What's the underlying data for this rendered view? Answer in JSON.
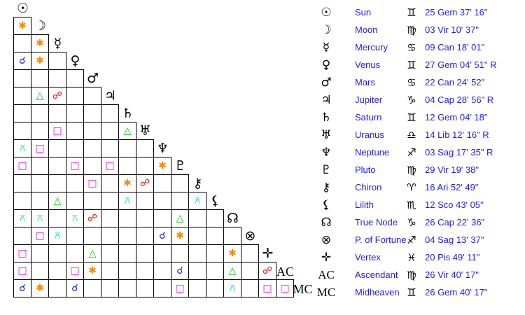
{
  "aspect_types": {
    "conjunction": {
      "glyph": "☌",
      "color": "#1a1aff"
    },
    "sextile": {
      "glyph": "✱",
      "color": "#ff8800"
    },
    "square": {
      "glyph": "□",
      "color": "#ff00ff"
    },
    "trine": {
      "glyph": "△",
      "color": "#00cc00"
    },
    "opposition": {
      "glyph": "☍",
      "color": "#ff0000"
    },
    "quincunx": {
      "glyph": "⚻",
      "color": "#00e0e0"
    }
  },
  "planets": [
    {
      "name": "Sun",
      "glyph": "☉",
      "sign": "♊",
      "position": "25 Gem 37' 16\""
    },
    {
      "name": "Moon",
      "glyph": "☽",
      "sign": "♍",
      "position": "03 Vir 10' 37\""
    },
    {
      "name": "Mercury",
      "glyph": "☿",
      "sign": "♋",
      "position": "09 Can 18' 01\""
    },
    {
      "name": "Venus",
      "glyph": "♀",
      "sign": "♊",
      "position": "27 Gem 04' 51\" R"
    },
    {
      "name": "Mars",
      "glyph": "♂",
      "sign": "♋",
      "position": "22 Can 24' 52\""
    },
    {
      "name": "Jupiter",
      "glyph": "♃",
      "sign": "♑",
      "position": "04 Cap 28' 56\" R"
    },
    {
      "name": "Saturn",
      "glyph": "♄",
      "sign": "♊",
      "position": "12 Gem 04' 18\""
    },
    {
      "name": "Uranus",
      "glyph": "♅",
      "sign": "♎",
      "position": "14 Lib 12' 16\" R"
    },
    {
      "name": "Neptune",
      "glyph": "♆",
      "sign": "♐",
      "position": "03 Sag 17' 35\" R"
    },
    {
      "name": "Pluto",
      "glyph": "♇",
      "sign": "♍",
      "position": "29 Vir 19' 38\""
    },
    {
      "name": "Chiron",
      "glyph": "⚷",
      "sign": "♈",
      "position": "16 Ari 52' 49\""
    },
    {
      "name": "Lilith",
      "glyph": "⚸",
      "sign": "♏",
      "position": "12 Sco 43' 05\""
    },
    {
      "name": "True Node",
      "glyph": "☊",
      "sign": "♑",
      "position": "26 Cap 22' 36\""
    },
    {
      "name": "P. of Fortune",
      "glyph": "⊗",
      "sign": "♐",
      "position": "04 Sag 13' 37\""
    },
    {
      "name": "Vertex",
      "glyph": "✛",
      "sign": "♓",
      "position": "20 Pis 49' 11\""
    },
    {
      "name": "Ascendant",
      "glyph": "AC",
      "sign": "♍",
      "position": "26 Vir 40' 17\""
    },
    {
      "name": "Midheaven",
      "glyph": "MC",
      "sign": "♊",
      "position": "26 Gem 40' 17\""
    }
  ],
  "aspects": [
    {
      "row": 1,
      "col": 0,
      "type": "sextile"
    },
    {
      "row": 2,
      "col": 1,
      "type": "sextile"
    },
    {
      "row": 3,
      "col": 0,
      "type": "conjunction"
    },
    {
      "row": 3,
      "col": 1,
      "type": "sextile"
    },
    {
      "row": 5,
      "col": 1,
      "type": "trine"
    },
    {
      "row": 5,
      "col": 2,
      "type": "opposition"
    },
    {
      "row": 7,
      "col": 2,
      "type": "square"
    },
    {
      "row": 7,
      "col": 6,
      "type": "trine"
    },
    {
      "row": 8,
      "col": 0,
      "type": "quincunx"
    },
    {
      "row": 8,
      "col": 1,
      "type": "square"
    },
    {
      "row": 9,
      "col": 0,
      "type": "square"
    },
    {
      "row": 9,
      "col": 3,
      "type": "square"
    },
    {
      "row": 9,
      "col": 5,
      "type": "square"
    },
    {
      "row": 9,
      "col": 8,
      "type": "sextile"
    },
    {
      "row": 10,
      "col": 4,
      "type": "square"
    },
    {
      "row": 10,
      "col": 6,
      "type": "sextile"
    },
    {
      "row": 10,
      "col": 7,
      "type": "opposition"
    },
    {
      "row": 11,
      "col": 2,
      "type": "trine"
    },
    {
      "row": 11,
      "col": 6,
      "type": "quincunx"
    },
    {
      "row": 11,
      "col": 10,
      "type": "quincunx"
    },
    {
      "row": 12,
      "col": 0,
      "type": "quincunx"
    },
    {
      "row": 12,
      "col": 1,
      "type": "quincunx"
    },
    {
      "row": 12,
      "col": 3,
      "type": "quincunx"
    },
    {
      "row": 12,
      "col": 4,
      "type": "opposition"
    },
    {
      "row": 12,
      "col": 9,
      "type": "trine"
    },
    {
      "row": 13,
      "col": 1,
      "type": "square"
    },
    {
      "row": 13,
      "col": 2,
      "type": "quincunx"
    },
    {
      "row": 13,
      "col": 8,
      "type": "conjunction"
    },
    {
      "row": 13,
      "col": 9,
      "type": "sextile"
    },
    {
      "row": 14,
      "col": 0,
      "type": "square"
    },
    {
      "row": 14,
      "col": 4,
      "type": "trine"
    },
    {
      "row": 14,
      "col": 12,
      "type": "sextile"
    },
    {
      "row": 15,
      "col": 0,
      "type": "square"
    },
    {
      "row": 15,
      "col": 3,
      "type": "square"
    },
    {
      "row": 15,
      "col": 4,
      "type": "sextile"
    },
    {
      "row": 15,
      "col": 9,
      "type": "conjunction"
    },
    {
      "row": 15,
      "col": 12,
      "type": "trine"
    },
    {
      "row": 15,
      "col": 14,
      "type": "opposition"
    },
    {
      "row": 16,
      "col": 0,
      "type": "conjunction"
    },
    {
      "row": 16,
      "col": 1,
      "type": "sextile"
    },
    {
      "row": 16,
      "col": 3,
      "type": "conjunction"
    },
    {
      "row": 16,
      "col": 9,
      "type": "square"
    },
    {
      "row": 16,
      "col": 12,
      "type": "quincunx"
    },
    {
      "row": 16,
      "col": 14,
      "type": "square"
    },
    {
      "row": 16,
      "col": 15,
      "type": "square"
    }
  ]
}
